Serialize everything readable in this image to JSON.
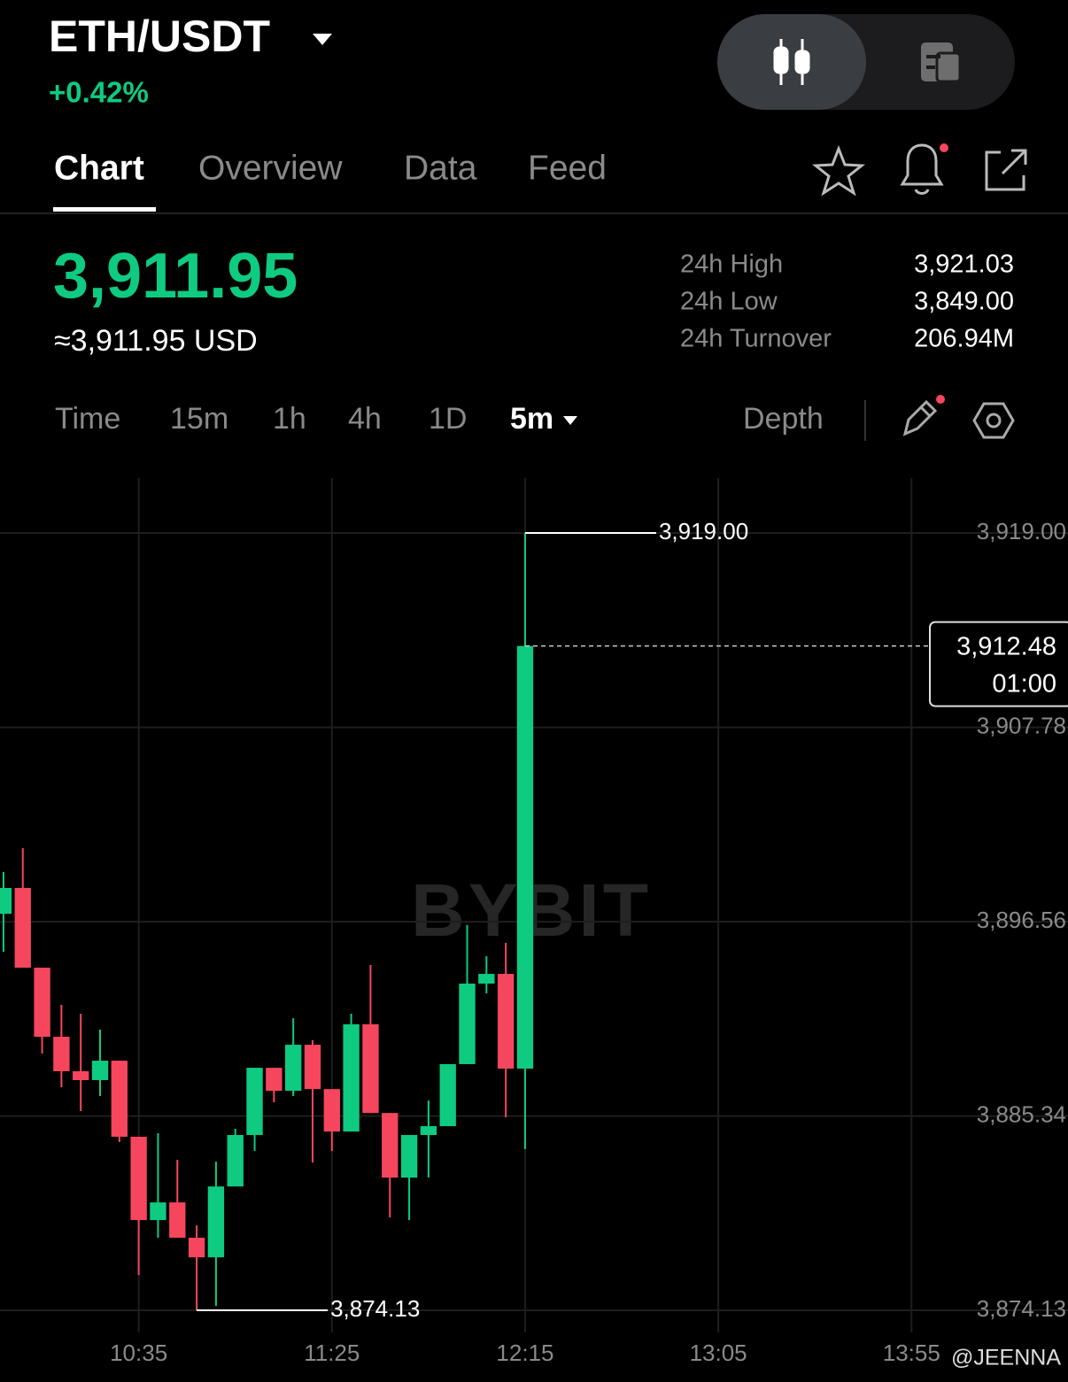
{
  "header": {
    "pair": "ETH/USDT",
    "change": "+0.42%"
  },
  "tabs": [
    "Chart",
    "Overview",
    "Data",
    "Feed"
  ],
  "price": {
    "last": "3,911.95",
    "usd": "≈3,911.95 USD"
  },
  "stats": [
    {
      "label": "24h High",
      "value": "3,921.03"
    },
    {
      "label": "24h Low",
      "value": "3,849.00"
    },
    {
      "label": "24h Turnover",
      "value": "206.94M"
    }
  ],
  "intervals": [
    "Time",
    "15m",
    "1h",
    "4h",
    "1D",
    "5m"
  ],
  "depth": "Depth",
  "watermark": "BYBIT",
  "credit": "@JEENNA",
  "chart_data": {
    "type": "candlestick",
    "x": [
      0,
      1,
      2,
      3,
      4,
      5,
      6,
      7,
      8,
      9,
      10,
      11,
      12,
      13,
      14,
      15,
      16,
      17,
      18,
      19,
      20,
      21,
      22,
      23,
      24,
      25,
      26,
      27
    ],
    "open": [
      3897.02,
      3898.51,
      3893.91,
      3889.92,
      3887.93,
      3887.42,
      3888.54,
      3884.15,
      3879.34,
      3880.36,
      3878.32,
      3877.19,
      3881.28,
      3884.25,
      3888.13,
      3886.8,
      3889.46,
      3886.9,
      3884.45,
      3890.64,
      3885.52,
      3881.79,
      3884.25,
      3884.76,
      3888.34,
      3892.99,
      3893.55,
      3888.08
    ],
    "high": [
      3899.43,
      3900.81,
      3893.91,
      3891.76,
      3891.25,
      3890.33,
      3888.54,
      3884.15,
      3884.35,
      3882.82,
      3879.03,
      3882.71,
      3884.61,
      3888.13,
      3888.13,
      3890.99,
      3889.72,
      3886.9,
      3891.25,
      3894.06,
      3885.52,
      3884.25,
      3886.24,
      3888.34,
      3896.36,
      3894.57,
      3895.34,
      3919.0
    ],
    "low": [
      3894.83,
      3893.91,
      3888.95,
      3887.01,
      3885.63,
      3886.5,
      3883.84,
      3876.17,
      3878.32,
      3878.32,
      3874.13,
      3874.38,
      3881.28,
      3883.33,
      3886.14,
      3886.5,
      3882.66,
      3883.33,
      3884.45,
      3885.52,
      3879.49,
      3879.34,
      3881.79,
      3884.76,
      3888.34,
      3892.42,
      3885.27,
      3883.43
    ],
    "close": [
      3898.51,
      3893.91,
      3889.92,
      3887.93,
      3887.42,
      3888.54,
      3884.15,
      3879.34,
      3880.36,
      3878.32,
      3877.19,
      3881.28,
      3884.25,
      3888.13,
      3886.8,
      3889.46,
      3886.9,
      3884.45,
      3890.64,
      3885.52,
      3881.79,
      3884.25,
      3884.76,
      3888.34,
      3892.99,
      3893.55,
      3888.08,
      3912.48
    ],
    "up_color": "#0ecb81",
    "down_color": "#f6465d",
    "xlim": [
      -0.18,
      55.1
    ],
    "xticks": [
      {
        "value": 7,
        "label": "10:35"
      },
      {
        "value": 17,
        "label": "11:25"
      },
      {
        "value": 27,
        "label": "12:15"
      },
      {
        "value": 37,
        "label": "13:05"
      },
      {
        "value": 47,
        "label": "13:55"
      }
    ],
    "ylim": [
      3873.11,
      3922.17
    ],
    "yticks": [
      {
        "value": 3919.0,
        "label": "3,919.00"
      },
      {
        "value": 3907.78,
        "label": "3,907.78"
      },
      {
        "value": 3896.56,
        "label": "3,896.56"
      },
      {
        "value": 3885.34,
        "label": "3,885.34"
      },
      {
        "value": 3874.13,
        "label": "3,874.13"
      }
    ],
    "grid": true,
    "annotations": [
      {
        "x": 27,
        "value": 3919.0,
        "label": "3,919.00"
      },
      {
        "x": 10,
        "value": 3874.13,
        "label": "3,874.13"
      }
    ],
    "current": {
      "value": 3912.48,
      "label": "3,912.48",
      "countdown": "01:00"
    }
  }
}
